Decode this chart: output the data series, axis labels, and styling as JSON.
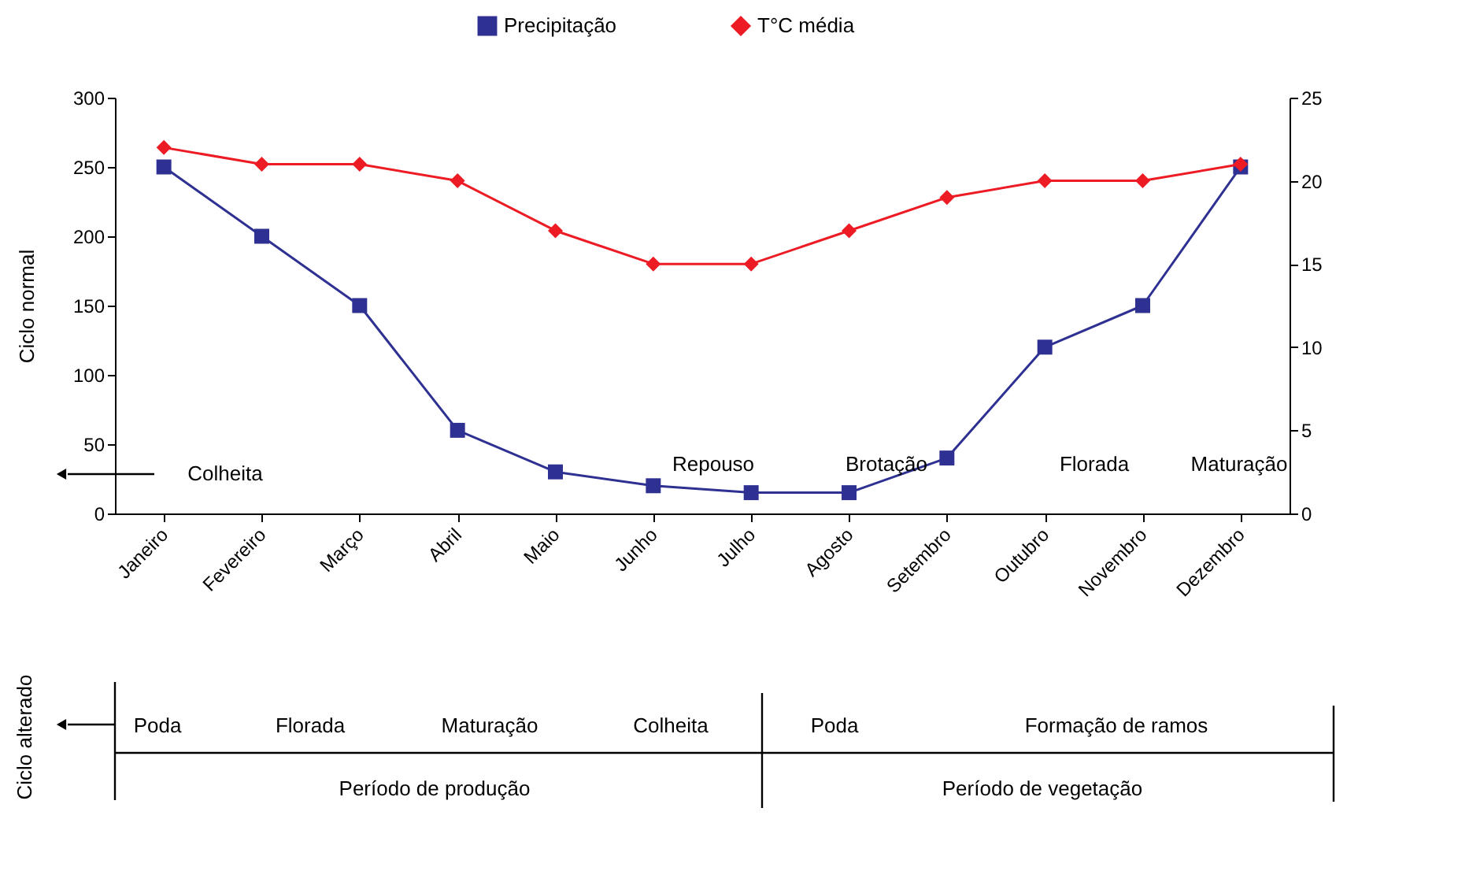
{
  "chart_data": {
    "type": "line",
    "categories": [
      "Janeiro",
      "Fevereiro",
      "Março",
      "Abril",
      "Maio",
      "Junho",
      "Julho",
      "Agosto",
      "Setembro",
      "Outubro",
      "Novembro",
      "Dezembro"
    ],
    "series": [
      {
        "name": "Precipitação",
        "color": "#2e3192",
        "marker": "square",
        "values": [
          250,
          200,
          150,
          60,
          30,
          20,
          15,
          15,
          40,
          120,
          150,
          250
        ]
      },
      {
        "name": "T°C média",
        "color": "#ed1c24",
        "marker": "diamond",
        "axis": "y2",
        "values": [
          22,
          21,
          21,
          20,
          17,
          15,
          15,
          17,
          19,
          20,
          20,
          21
        ]
      }
    ],
    "ylabel": "Ciclo normal",
    "ylim": [
      0,
      300
    ],
    "yticks": [
      0,
      50,
      100,
      150,
      200,
      250,
      300
    ],
    "y2lim": [
      0,
      25
    ],
    "y2ticks": [
      0,
      5,
      10,
      15,
      20,
      25
    ],
    "grid": false,
    "legend": "top",
    "line_style": "solid",
    "annotations": [
      "Colheita",
      "Repouso",
      "Brotação",
      "Florada",
      "Maturação",
      "Ciclo alterado",
      "Poda",
      "Florada",
      "Maturação",
      "Colheita",
      "Poda",
      "Formação de ramos",
      "Período de produção",
      "Período de vegetação"
    ]
  }
}
